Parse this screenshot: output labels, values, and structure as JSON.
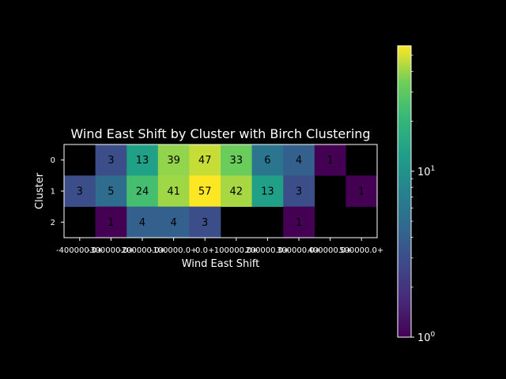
{
  "chart_data": {
    "type": "heatmap",
    "title": "Wind East Shift by Cluster with Birch Clustering",
    "xlabel": "Wind East Shift",
    "ylabel": "Cluster",
    "x_categories": [
      "-400000.0+",
      "-300000.0+",
      "-200000.0+",
      "-100000.0+",
      "0.0+",
      "100000.0+",
      "200000.0+",
      "300000.0+",
      "400000.0+",
      "500000.0+"
    ],
    "y_categories": [
      "0",
      "1",
      "2"
    ],
    "values": [
      [
        null,
        3,
        13,
        39,
        47,
        33,
        6,
        4,
        1,
        null
      ],
      [
        3,
        5,
        24,
        41,
        57,
        42,
        13,
        3,
        null,
        1
      ],
      [
        null,
        1,
        4,
        4,
        3,
        null,
        null,
        1,
        null,
        null
      ]
    ],
    "colorbar": {
      "scale": "log",
      "min": 1,
      "max": 57,
      "ticks": [
        1,
        10
      ],
      "colormap": "viridis"
    }
  }
}
